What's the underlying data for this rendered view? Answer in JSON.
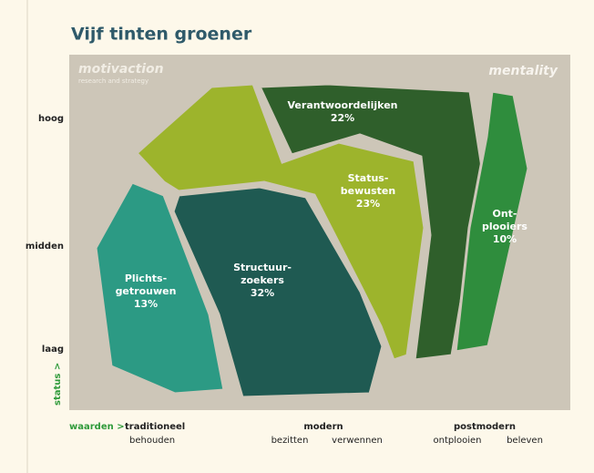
{
  "title": "Vijf tinten groener",
  "logos": {
    "left": "motivaction",
    "left_sub": "research and strategy",
    "right": "mentality"
  },
  "y_axis": {
    "name": "status >",
    "levels": [
      "hoog",
      "midden",
      "laag"
    ]
  },
  "x_axis": {
    "name": "waarden >",
    "groups": [
      {
        "label": "traditioneel",
        "sub": [
          "behouden"
        ]
      },
      {
        "label": "modern",
        "sub": [
          "bezitten",
          "verwennen"
        ]
      },
      {
        "label": "postmodern",
        "sub": [
          "ontplooien",
          "beleven"
        ]
      }
    ]
  },
  "segments": [
    {
      "lines": [
        "Verantwoordelijken"
      ],
      "share": "22%"
    },
    {
      "lines": [
        "Status-",
        "bewusten"
      ],
      "share": "23%"
    },
    {
      "lines": [
        "Ont-",
        "plooiers"
      ],
      "share": "10%"
    },
    {
      "lines": [
        "Plichts-",
        "getrouwen"
      ],
      "share": "13%"
    },
    {
      "lines": [
        "Structuur-",
        "zoekers"
      ],
      "share": "32%"
    }
  ]
}
